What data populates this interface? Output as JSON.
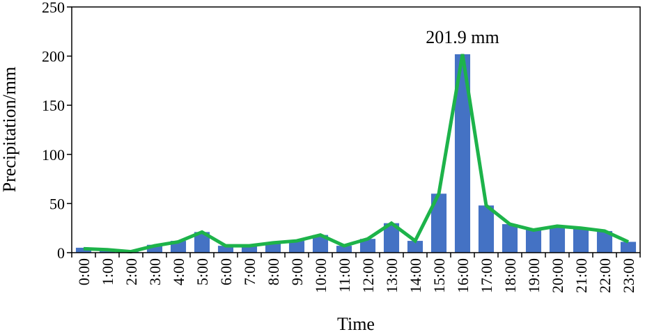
{
  "chart_data": {
    "type": "bar",
    "xlabel": "Time",
    "ylabel": "Precipitation/mm",
    "ylim": [
      0,
      250
    ],
    "yticks": [
      0,
      50,
      100,
      150,
      200,
      250
    ],
    "grid": false,
    "legend": "none",
    "categories": [
      "0:00",
      "1:00",
      "2:00",
      "3:00",
      "4:00",
      "5:00",
      "6:00",
      "7:00",
      "8:00",
      "9:00",
      "10:00",
      "11:00",
      "12:00",
      "13:00",
      "14:00",
      "15:00",
      "16:00",
      "17:00",
      "18:00",
      "19:00",
      "20:00",
      "21:00",
      "22:00",
      "23:00"
    ],
    "series": [
      {
        "kind": "bar",
        "color": "#4472C4",
        "values": [
          5,
          3,
          1,
          8,
          12,
          21,
          7,
          7,
          10,
          12,
          18,
          7,
          14,
          30,
          12,
          60,
          201.9,
          48,
          29,
          23,
          27,
          25,
          22,
          11
        ]
      },
      {
        "kind": "line",
        "color": "#1DB34A",
        "values": [
          4,
          3,
          1,
          7,
          11,
          21,
          7,
          7,
          10,
          12,
          18,
          7,
          14,
          30,
          12,
          60,
          201.9,
          48,
          29,
          23,
          27,
          25,
          22,
          11
        ]
      }
    ],
    "annotations": [
      {
        "text": "201.9 mm",
        "category": "16:00",
        "value": 201.9
      }
    ]
  }
}
